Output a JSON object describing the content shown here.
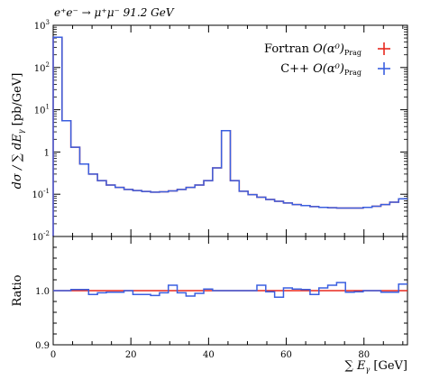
{
  "chart_data": [
    {
      "type": "line",
      "title": "e⁺e⁻ → μ⁺μ⁻ 91.2 GeV",
      "ylabel": "dσ / ∑ dE",
      "ylabel_sub": "γ",
      "ylabel_unit": "[pb/GeV]",
      "yscale": "log",
      "ylim": [
        0.01,
        1000
      ],
      "xlim": [
        0,
        91.2
      ],
      "yticks": [
        {
          "label": "10",
          "exp": "-2",
          "value": 0.01
        },
        {
          "label": "10",
          "exp": "-1",
          "value": 0.1
        },
        {
          "label": "1",
          "exp": "",
          "value": 1
        },
        {
          "label": "10",
          "exp": "1",
          "value": 10
        },
        {
          "label": "10",
          "exp": "2",
          "value": 100
        },
        {
          "label": "10",
          "exp": "3",
          "value": 1000
        }
      ],
      "legend_position": "top-right",
      "bin_edges": [
        0,
        2.28,
        4.56,
        6.84,
        9.12,
        11.4,
        13.68,
        15.96,
        18.24,
        20.52,
        22.8,
        25.08,
        27.36,
        29.64,
        31.92,
        34.2,
        36.48,
        38.76,
        41.04,
        43.32,
        45.6,
        47.88,
        50.16,
        52.44,
        54.72,
        57.0,
        59.28,
        61.56,
        63.84,
        66.12,
        68.4,
        70.68,
        72.96,
        75.24,
        77.52,
        79.8,
        82.08,
        84.36,
        86.64,
        88.92,
        91.2
      ],
      "series": [
        {
          "name": "Fortran",
          "name_math": "O(α⁰)",
          "name_sub": "Prag",
          "color": "#e8281e",
          "values": [
            520,
            5.5,
            1.3,
            0.52,
            0.3,
            0.21,
            0.165,
            0.145,
            0.13,
            0.122,
            0.116,
            0.112,
            0.114,
            0.12,
            0.13,
            0.145,
            0.165,
            0.21,
            0.42,
            3.2,
            0.21,
            0.118,
            0.098,
            0.085,
            0.075,
            0.068,
            0.062,
            0.057,
            0.054,
            0.051,
            0.049,
            0.048,
            0.047,
            0.047,
            0.047,
            0.049,
            0.052,
            0.057,
            0.065,
            0.078
          ]
        },
        {
          "name": "C++",
          "name_math": "O(α⁰)",
          "name_sub": "Prag",
          "color": "#3a5fe0",
          "values": [
            520,
            5.5,
            1.3,
            0.52,
            0.3,
            0.21,
            0.165,
            0.145,
            0.13,
            0.122,
            0.116,
            0.112,
            0.114,
            0.12,
            0.13,
            0.145,
            0.165,
            0.21,
            0.42,
            3.2,
            0.21,
            0.118,
            0.098,
            0.085,
            0.075,
            0.068,
            0.062,
            0.057,
            0.054,
            0.051,
            0.049,
            0.048,
            0.047,
            0.047,
            0.047,
            0.049,
            0.052,
            0.057,
            0.065,
            0.078
          ]
        }
      ]
    },
    {
      "type": "line",
      "ylabel": "Ratio",
      "xlabel": "∑ E",
      "xlabel_sub": "γ",
      "xlabel_unit": "[GeV]",
      "ylim": [
        0.9,
        1.1
      ],
      "xlim": [
        0,
        91.2
      ],
      "yticks": [
        0.9,
        1.0
      ],
      "ytick_labels": [
        "0.9",
        "1.0"
      ],
      "xticks": [
        0,
        20,
        40,
        60,
        80
      ],
      "series": [
        {
          "name": "Fortran",
          "color": "#e8281e",
          "values": [
            1.0,
            1.0,
            1.0,
            1.0,
            1.0,
            1.0,
            1.0,
            1.0,
            1.0,
            1.0,
            1.0,
            1.0,
            1.0,
            1.0,
            1.0,
            1.0,
            1.0,
            1.0,
            1.0,
            1.0,
            1.0,
            1.0,
            1.0,
            1.0,
            1.0,
            1.0,
            1.0,
            1.0,
            1.0,
            1.0,
            1.0,
            1.0,
            1.0,
            1.0,
            1.0,
            1.0,
            1.0,
            1.0,
            1.0,
            1.0
          ]
        },
        {
          "name": "C++",
          "color": "#3a5fe0",
          "values": [
            1.0,
            1.0,
            1.002,
            1.002,
            0.993,
            0.996,
            0.997,
            0.997,
            1.0,
            0.993,
            0.993,
            0.991,
            0.996,
            1.01,
            0.996,
            0.99,
            0.995,
            1.003,
            1.0,
            1.0,
            1.0,
            1.0,
            1.0,
            1.01,
            0.998,
            0.988,
            1.005,
            1.003,
            1.002,
            0.993,
            1.005,
            1.01,
            1.015,
            0.997,
            0.998,
            1.0,
            1.0,
            0.997,
            0.997,
            1.012
          ]
        }
      ]
    }
  ]
}
